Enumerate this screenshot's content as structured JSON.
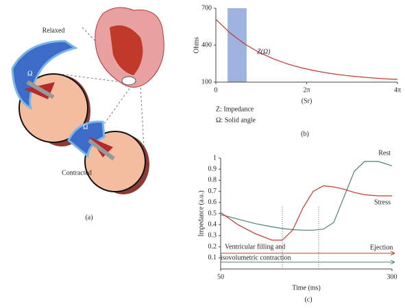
{
  "illustration": {
    "labels": [
      "Relaxed",
      "Ω",
      "Ω",
      "Contracted"
    ],
    "caption": "(a)"
  },
  "chart_data": [
    {
      "type": "line",
      "caption": "(b)",
      "x_label": "(Sr)",
      "y_label": "Ohms",
      "color": "#c0392b",
      "x": [
        0,
        1,
        2,
        3,
        4,
        5,
        6,
        7,
        8,
        9,
        10,
        11,
        12,
        12.566
      ],
      "values": [
        610,
        497,
        409,
        341,
        288,
        246,
        214,
        189,
        169,
        154,
        142,
        133,
        125,
        122
      ],
      "band": {
        "span": [
          0.81,
          2.13
        ],
        "color": "#9fb3e0"
      },
      "annotations": [
        "Z(Ω)"
      ],
      "notes": [
        "Z: Impedance",
        "Ω: Solid angle"
      ],
      "xlim": [
        0,
        12.566
      ],
      "ylim": [
        100,
        700
      ],
      "xticks": [
        0,
        {
          "value": 6.283,
          "label": "2π"
        },
        {
          "value": 12.566,
          "label": "4π"
        }
      ],
      "yticks": [
        100,
        400,
        700
      ]
    },
    {
      "type": "line",
      "caption": "(c)",
      "x_label": "Time (ms)",
      "y_label": "Impedance (a.u.)",
      "x": [
        50,
        75,
        100,
        125,
        140,
        155,
        170,
        185,
        200,
        215,
        230,
        245,
        260,
        280,
        300
      ],
      "series": [
        {
          "name": "Rest",
          "color": "#4f7f74",
          "values": [
            0.49,
            0.45,
            0.41,
            0.38,
            0.365,
            0.355,
            0.35,
            0.35,
            0.36,
            0.42,
            0.65,
            0.88,
            0.97,
            0.97,
            0.93
          ]
        },
        {
          "name": "Stress",
          "color": "#c0392b",
          "values": [
            0.51,
            0.4,
            0.32,
            0.26,
            0.26,
            0.35,
            0.55,
            0.7,
            0.75,
            0.74,
            0.72,
            0.69,
            0.67,
            0.66,
            0.66
          ]
        }
      ],
      "vlines": [
        140,
        193
      ],
      "annotations": [
        "Ejection",
        "Ventricular filling and",
        "isovolumetric contraction"
      ],
      "xlim": [
        50,
        300
      ],
      "ylim": [
        0,
        1
      ],
      "xticks": [
        50,
        300
      ],
      "yticks": [
        0.1,
        0.2,
        0.3,
        0.4,
        0.5,
        0.6,
        0.7,
        0.8,
        0.9,
        1
      ]
    }
  ]
}
